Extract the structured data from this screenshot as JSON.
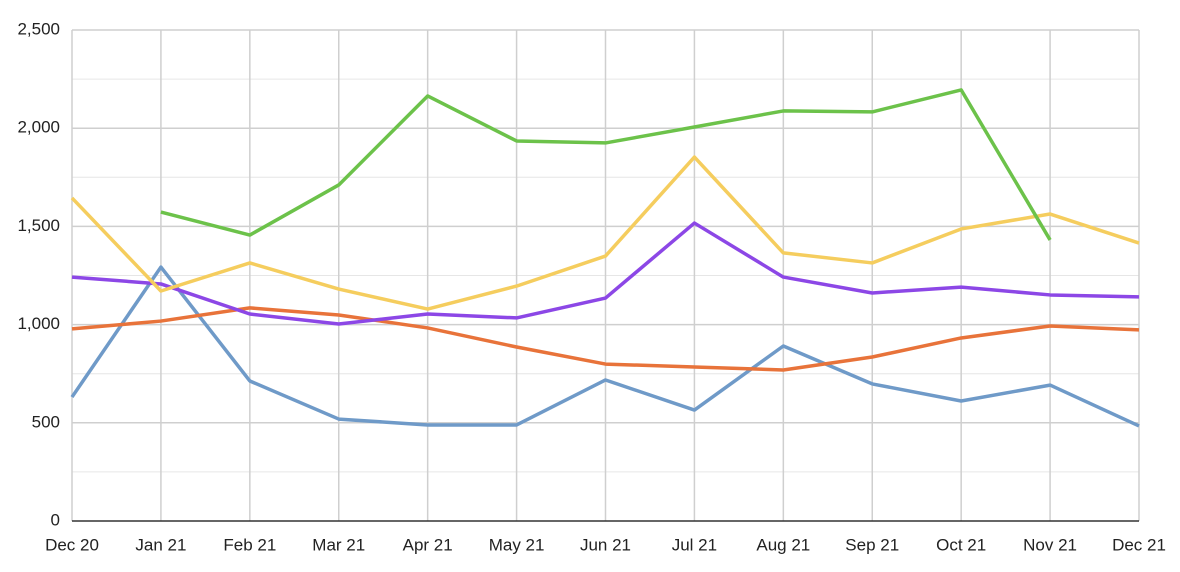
{
  "chart_data": {
    "type": "line",
    "categories": [
      "Dec 20",
      "Jan 21",
      "Feb 21",
      "Mar 21",
      "Apr 21",
      "May 21",
      "Jun 21",
      "Jul 21",
      "Aug 21",
      "Sep 21",
      "Oct 21",
      "Nov 21",
      "Dec 21"
    ],
    "series": [
      {
        "color": "#6f9ac8",
        "values": [
          631,
          1293,
          713,
          519,
          489,
          489,
          718,
          565,
          891,
          698,
          611,
          692,
          484
        ]
      },
      {
        "color": "#e8733a",
        "values": [
          978,
          1018,
          1085,
          1049,
          983,
          886,
          799,
          784,
          769,
          835,
          932,
          993,
          973
        ]
      },
      {
        "color": "#8c47e6",
        "values": [
          1242,
          1207,
          1054,
          1003,
          1054,
          1034,
          1135,
          1517,
          1242,
          1161,
          1191,
          1151,
          1141
        ]
      },
      {
        "color": "#f5cd5e",
        "values": [
          1645,
          1171,
          1314,
          1181,
          1079,
          1196,
          1349,
          1853,
          1365,
          1314,
          1487,
          1563,
          1415
        ]
      },
      {
        "color": "#6cc24a",
        "values": [
          null,
          1573,
          1456,
          1711,
          2164,
          1935,
          1925,
          2006,
          2088,
          2083,
          2195,
          1431,
          null
        ]
      }
    ],
    "ylim": [
      0,
      2500
    ],
    "yticks": [
      0,
      500,
      {
        "value": 1000,
        "label": "1,000"
      },
      {
        "value": 1500,
        "label": "1,500"
      },
      {
        "value": 2000,
        "label": "2,000"
      },
      {
        "value": 2500,
        "label": "2,500"
      }
    ],
    "yminorticks": [
      250,
      750,
      1250,
      1750,
      2250
    ],
    "grid": true
  }
}
